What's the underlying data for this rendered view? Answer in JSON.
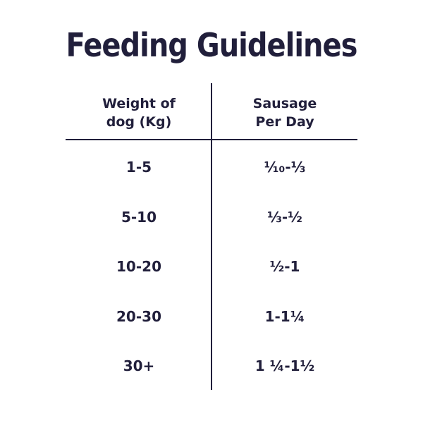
{
  "title": "Feeding Guidelines",
  "table": {
    "header": [
      [
        "Weight of",
        "dog (Kg)"
      ],
      [
        "Sausage",
        "Per Day"
      ]
    ],
    "rows": [
      [
        "1-5",
        "⅒-⅓"
      ],
      [
        "5-10",
        "⅓-½"
      ],
      [
        "10-20",
        "½-1"
      ],
      [
        "20-30",
        "1-1¼"
      ],
      [
        "30+",
        "1 ¼-1½"
      ]
    ]
  }
}
